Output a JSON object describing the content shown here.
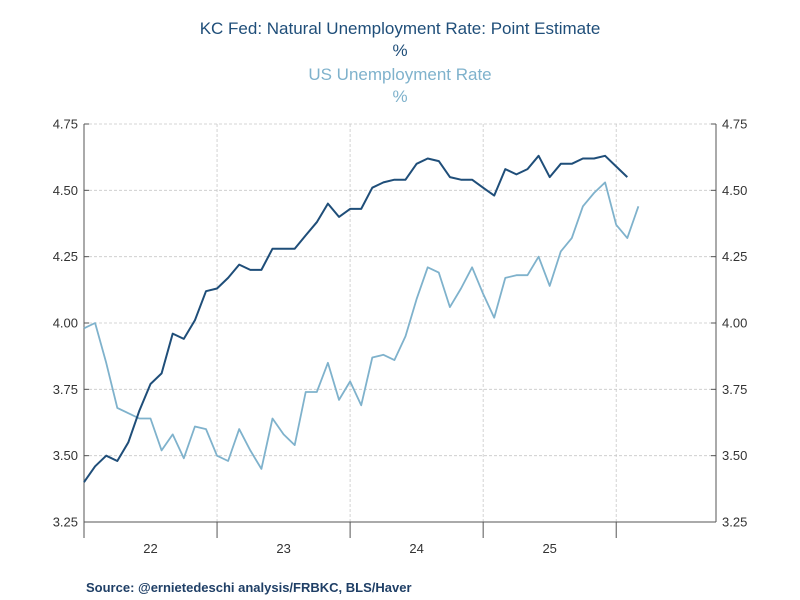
{
  "titles": {
    "series1_title": "KC Fed: Natural Unemployment Rate: Point Estimate",
    "series1_unit": "%",
    "series2_title": "US Unemployment Rate",
    "series2_unit": "%"
  },
  "source": "Source:  @ernietedeschi analysis/FRBKC, BLS/Haver",
  "colors": {
    "series1": "#1f4e79",
    "series2": "#7fb2cc",
    "grid": "#c8c8c8",
    "axis": "#555555"
  },
  "chart_data": {
    "type": "line",
    "title": "KC Fed: Natural Unemployment Rate: Point Estimate / US Unemployment Rate",
    "ylabel": "%",
    "ylabel_right": "%",
    "ylim": [
      3.25,
      4.75
    ],
    "yticks": [
      3.25,
      3.5,
      3.75,
      4.0,
      4.25,
      4.5,
      4.75
    ],
    "ytick_labels": [
      "3.25",
      "3.50",
      "3.75",
      "4.00",
      "4.25",
      "4.50",
      "4.75"
    ],
    "xlim": [
      2021.0,
      2025.75
    ],
    "xgrid": [
      2022.0,
      2023.0,
      2024.0,
      2025.0
    ],
    "xtick_labels": [
      {
        "label": "22",
        "x": 2021.5
      },
      {
        "label": "23",
        "x": 2022.5
      },
      {
        "label": "24",
        "x": 2023.5
      },
      {
        "label": "25",
        "x": 2024.5
      }
    ],
    "series": [
      {
        "name": "KC Fed: Natural Unemployment Rate: Point Estimate",
        "color_key": "series1",
        "x_start": 2021.0,
        "x_step": 0.08333,
        "values": [
          3.4,
          3.46,
          3.5,
          3.48,
          3.55,
          3.67,
          3.77,
          3.81,
          3.96,
          3.94,
          4.01,
          4.12,
          4.13,
          4.17,
          4.22,
          4.2,
          4.2,
          4.28,
          4.28,
          4.28,
          4.33,
          4.38,
          4.45,
          4.4,
          4.43,
          4.43,
          4.51,
          4.53,
          4.54,
          4.54,
          4.6,
          4.62,
          4.61,
          4.55,
          4.54,
          4.54,
          4.51,
          4.48,
          4.58,
          4.56,
          4.58,
          4.63,
          4.55,
          4.6,
          4.6,
          4.62,
          4.62,
          4.63,
          4.59,
          4.55
        ]
      },
      {
        "name": "US Unemployment Rate",
        "color_key": "series2",
        "x_start": 2021.0,
        "x_step": 0.08333,
        "values": [
          3.98,
          4.0,
          3.85,
          3.68,
          3.66,
          3.64,
          3.64,
          3.52,
          3.58,
          3.49,
          3.61,
          3.6,
          3.5,
          3.48,
          3.6,
          3.52,
          3.45,
          3.64,
          3.58,
          3.54,
          3.74,
          3.74,
          3.85,
          3.71,
          3.78,
          3.69,
          3.87,
          3.88,
          3.86,
          3.95,
          4.09,
          4.21,
          4.19,
          4.06,
          4.13,
          4.21,
          4.11,
          4.02,
          4.17,
          4.18,
          4.18,
          4.25,
          4.14,
          4.27,
          4.32,
          4.44,
          4.49,
          4.53,
          4.37,
          4.32,
          4.44
        ]
      }
    ]
  }
}
